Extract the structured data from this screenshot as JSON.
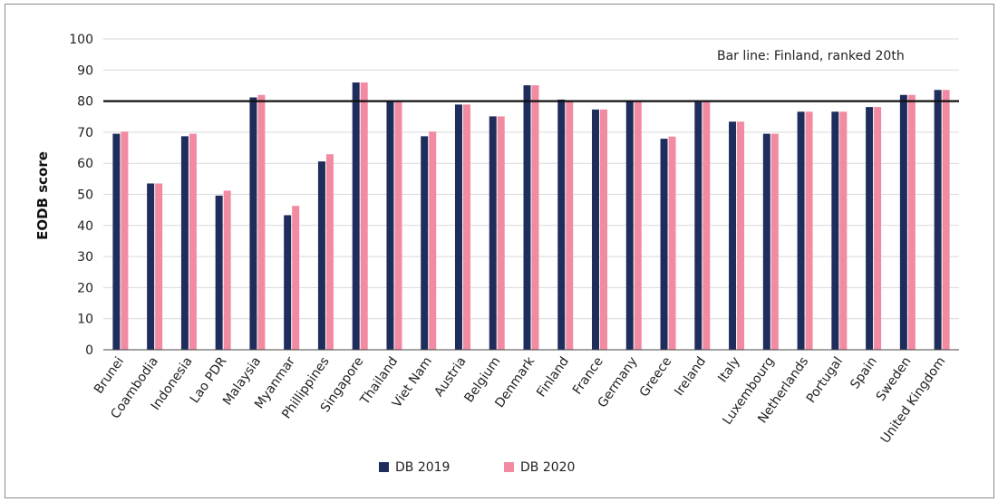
{
  "chart_data": {
    "type": "bar",
    "title": "",
    "xlabel": "",
    "ylabel": "EODB score",
    "ylim": [
      0,
      100
    ],
    "yticks": [
      0,
      10,
      20,
      30,
      40,
      50,
      60,
      70,
      80,
      90,
      100
    ],
    "grid": true,
    "legend_position": "bottom",
    "categories": [
      "Brunei",
      "Coambodia",
      "Indonesia",
      "Lao PDR",
      "Malaysia",
      "Myanmar",
      "Phillippines",
      "Singapore",
      "Thailand",
      "Viet Nam",
      "Austria",
      "Belgium",
      "Denmark",
      "Finland",
      "France",
      "Germany",
      "Greece",
      "Ireland",
      "Italy",
      "Luxembourg",
      "Netherlands",
      "Portugal",
      "Spain",
      "Sweden",
      "United Kingdom"
    ],
    "series": [
      {
        "name": "DB 2019",
        "color": "#1f2d5c",
        "values": [
          69.5,
          53.5,
          68.7,
          49.6,
          81.2,
          43.3,
          60.6,
          86.0,
          79.9,
          68.7,
          78.9,
          75.1,
          85.1,
          80.5,
          77.3,
          79.8,
          67.9,
          79.7,
          73.4,
          69.5,
          76.6,
          76.6,
          78.1,
          82.0,
          83.6
        ]
      },
      {
        "name": "DB 2020",
        "color": "#f28aa2",
        "values": [
          70.2,
          53.5,
          69.5,
          51.2,
          82.0,
          46.3,
          62.9,
          86.0,
          80.1,
          70.2,
          78.9,
          75.1,
          85.1,
          80.2,
          77.3,
          79.8,
          68.6,
          79.7,
          73.4,
          69.5,
          76.6,
          76.6,
          78.1,
          82.0,
          83.6
        ]
      }
    ],
    "reference_line": {
      "value": 80,
      "label": "Bar line: Finland, ranked 20th",
      "color": "#111111"
    }
  }
}
